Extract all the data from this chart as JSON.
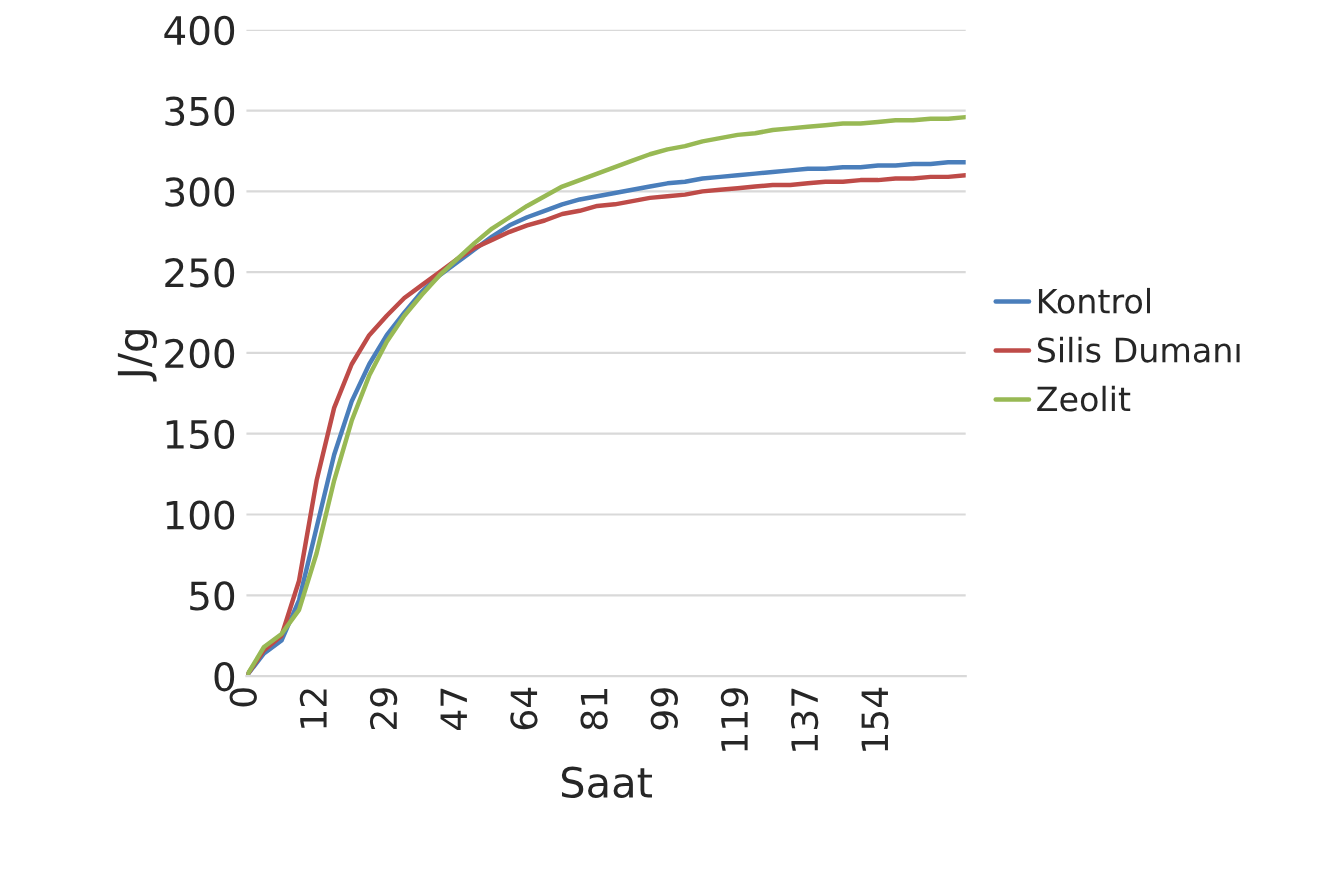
{
  "chart_data": {
    "type": "line",
    "xlabel": "Saat",
    "ylabel": "J/g",
    "categories": [
      "0",
      null,
      null,
      null,
      "12",
      null,
      null,
      null,
      "29",
      null,
      null,
      null,
      "47",
      null,
      null,
      null,
      "64",
      null,
      null,
      null,
      "81",
      null,
      null,
      null,
      "99",
      null,
      null,
      null,
      "119",
      null,
      null,
      null,
      "137",
      null,
      null,
      null,
      "154",
      null,
      null,
      null,
      null,
      null
    ],
    "series": [
      {
        "name": "Kontrol",
        "color": "#4a7ebb",
        "values": [
          0,
          14,
          22,
          47,
          92,
          137,
          170,
          193,
          211,
          225,
          238,
          248,
          256,
          264,
          272,
          279,
          284,
          288,
          292,
          295,
          297,
          299,
          301,
          303,
          305,
          306,
          308,
          309,
          310,
          311,
          312,
          313,
          314,
          314,
          315,
          315,
          316,
          316,
          317,
          317,
          318,
          318
        ]
      },
      {
        "name": "Silis Dumanı",
        "color": "#be4b48",
        "values": [
          0,
          16,
          25,
          59,
          121,
          166,
          193,
          211,
          223,
          234,
          242,
          250,
          258,
          265,
          270,
          275,
          279,
          282,
          286,
          288,
          291,
          292,
          294,
          296,
          297,
          298,
          300,
          301,
          302,
          303,
          304,
          304,
          305,
          306,
          306,
          307,
          307,
          308,
          308,
          309,
          309,
          310
        ]
      },
      {
        "name": "Zeolit",
        "color": "#98b954",
        "values": [
          0,
          18,
          26,
          41,
          76,
          121,
          158,
          186,
          207,
          223,
          236,
          248,
          258,
          268,
          277,
          284,
          291,
          297,
          303,
          307,
          311,
          315,
          319,
          323,
          326,
          328,
          331,
          333,
          335,
          336,
          338,
          339,
          340,
          341,
          342,
          342,
          343,
          344,
          344,
          345,
          345,
          346
        ]
      }
    ],
    "ylim": [
      0,
      400
    ],
    "yticks": [
      0,
      50,
      100,
      150,
      200,
      250,
      300,
      350,
      400
    ],
    "grid": "y",
    "legend": "right"
  }
}
